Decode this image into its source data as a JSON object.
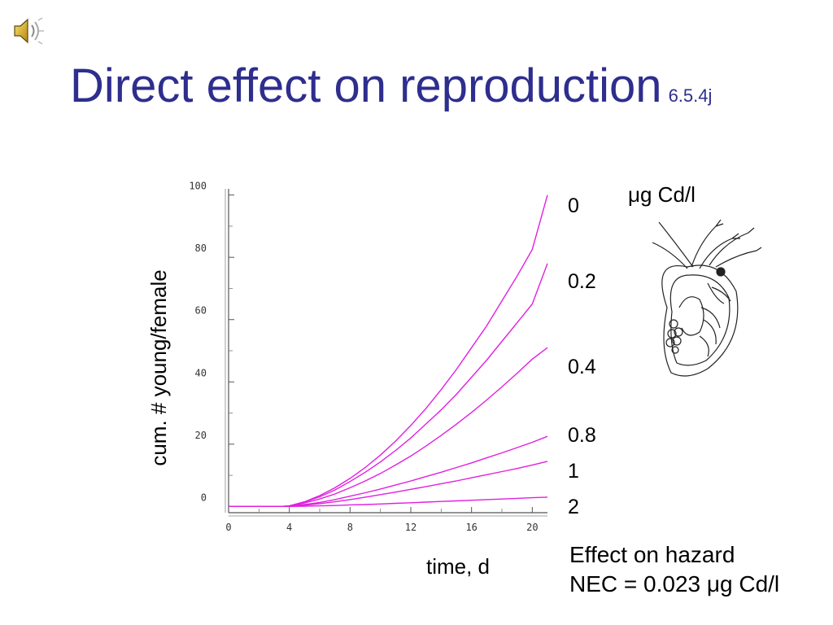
{
  "title": {
    "main": "Direct effect on reproduction",
    "ref": "6.5.4j"
  },
  "speaker_icon": "speaker-icon",
  "unit_label": "μg Cd/l",
  "notes": [
    "Effect on hazard",
    "NEC = 0.023 μg Cd/l"
  ],
  "illustration": "daphnia",
  "colors": {
    "title": "#2e2e8e",
    "curve": "#e020e0"
  },
  "chart_data": {
    "type": "line",
    "xlabel": "time, d",
    "ylabel": "cum. # young/female",
    "xlim": [
      0,
      21
    ],
    "ylim": [
      -2,
      102
    ],
    "xticks": [
      "0",
      "4",
      "8",
      "12",
      "16",
      "20"
    ],
    "yticks": [
      "0",
      "20",
      "40",
      "60",
      "80",
      "100"
    ],
    "grid": false,
    "x": [
      0,
      3.5,
      4,
      5,
      6,
      7,
      8,
      9,
      10,
      11,
      12,
      13,
      14,
      15,
      16,
      17,
      18,
      19,
      20,
      21
    ],
    "series": [
      {
        "name": "0",
        "values": [
          0,
          0,
          0.2,
          1.5,
          3.5,
          6,
          9,
          12.5,
          16.5,
          21,
          26,
          31.5,
          37.5,
          44,
          51,
          58,
          66,
          74,
          82.5,
          100
        ]
      },
      {
        "name": "0.2",
        "values": [
          0,
          0,
          0.2,
          1.4,
          3.1,
          5.3,
          8,
          11,
          14.3,
          18,
          22,
          26.5,
          31,
          36,
          41.5,
          47,
          53,
          59,
          65,
          78
        ]
      },
      {
        "name": "0.4",
        "values": [
          0,
          0,
          0.1,
          1.1,
          2.4,
          4,
          6,
          8.2,
          10.6,
          13.3,
          16.2,
          19.4,
          22.8,
          26.4,
          30.2,
          34.2,
          38.4,
          42.8,
          47.3,
          51
        ]
      },
      {
        "name": "0.8",
        "values": [
          0,
          0,
          0.1,
          0.6,
          1.3,
          2.2,
          3.3,
          4.4,
          5.6,
          6.9,
          8.2,
          9.6,
          11,
          12.5,
          14,
          15.6,
          17.2,
          18.9,
          20.6,
          22.5
        ]
      },
      {
        "name": "1",
        "values": [
          0,
          0,
          0.1,
          0.4,
          0.9,
          1.5,
          2.2,
          3,
          3.8,
          4.6,
          5.5,
          6.4,
          7.3,
          8.2,
          9.2,
          10.2,
          11.2,
          12.2,
          13.3,
          14.5
        ]
      },
      {
        "name": "2",
        "values": [
          0,
          0,
          0,
          0.1,
          0.2,
          0.3,
          0.5,
          0.6,
          0.8,
          1,
          1.2,
          1.4,
          1.6,
          1.8,
          2,
          2.2,
          2.4,
          2.6,
          2.8,
          3
        ]
      }
    ]
  }
}
